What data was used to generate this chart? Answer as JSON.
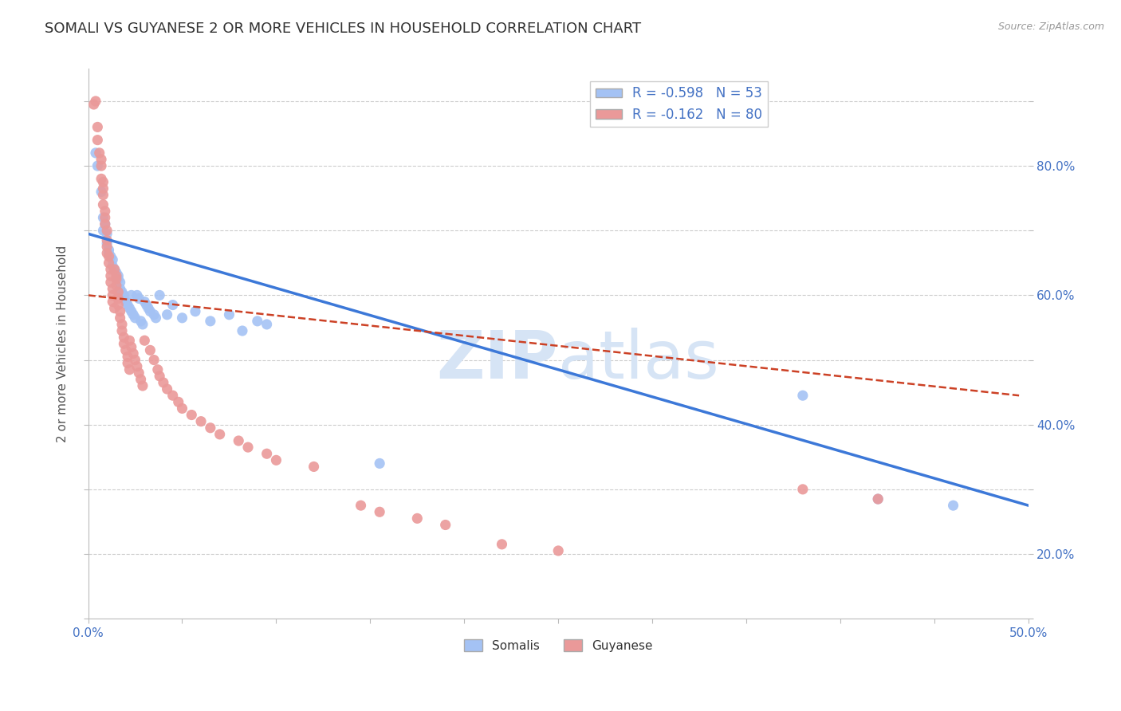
{
  "title": "SOMALI VS GUYANESE 2 OR MORE VEHICLES IN HOUSEHOLD CORRELATION CHART",
  "source": "Source: ZipAtlas.com",
  "ylabel": "2 or more Vehicles in Household",
  "xlim": [
    0.0,
    0.5
  ],
  "ylim": [
    0.0,
    0.85
  ],
  "somali_R": "-0.598",
  "somali_N": "53",
  "guyanese_R": "-0.162",
  "guyanese_N": "80",
  "somali_color": "#a4c2f4",
  "guyanese_color": "#ea9999",
  "somali_line_color": "#3c78d8",
  "guyanese_line_color": "#cc4125",
  "background_color": "#ffffff",
  "grid_color": "#cccccc",
  "watermark_color": "#d6e4f5",
  "somali_scatter": [
    [
      0.004,
      0.72
    ],
    [
      0.005,
      0.7
    ],
    [
      0.007,
      0.66
    ],
    [
      0.008,
      0.62
    ],
    [
      0.008,
      0.6
    ],
    [
      0.009,
      0.61
    ],
    [
      0.01,
      0.595
    ],
    [
      0.01,
      0.58
    ],
    [
      0.011,
      0.57
    ],
    [
      0.011,
      0.565
    ],
    [
      0.012,
      0.56
    ],
    [
      0.013,
      0.555
    ],
    [
      0.013,
      0.545
    ],
    [
      0.014,
      0.54
    ],
    [
      0.015,
      0.535
    ],
    [
      0.016,
      0.53
    ],
    [
      0.016,
      0.525
    ],
    [
      0.017,
      0.52
    ],
    [
      0.017,
      0.51
    ],
    [
      0.018,
      0.505
    ],
    [
      0.019,
      0.5
    ],
    [
      0.019,
      0.495
    ],
    [
      0.02,
      0.49
    ],
    [
      0.021,
      0.485
    ],
    [
      0.022,
      0.48
    ],
    [
      0.023,
      0.475
    ],
    [
      0.023,
      0.5
    ],
    [
      0.024,
      0.47
    ],
    [
      0.025,
      0.465
    ],
    [
      0.026,
      0.5
    ],
    [
      0.027,
      0.495
    ],
    [
      0.028,
      0.46
    ],
    [
      0.029,
      0.455
    ],
    [
      0.03,
      0.49
    ],
    [
      0.031,
      0.485
    ],
    [
      0.032,
      0.48
    ],
    [
      0.033,
      0.475
    ],
    [
      0.035,
      0.47
    ],
    [
      0.036,
      0.465
    ],
    [
      0.038,
      0.5
    ],
    [
      0.042,
      0.47
    ],
    [
      0.045,
      0.485
    ],
    [
      0.05,
      0.465
    ],
    [
      0.057,
      0.475
    ],
    [
      0.065,
      0.46
    ],
    [
      0.075,
      0.47
    ],
    [
      0.082,
      0.445
    ],
    [
      0.09,
      0.46
    ],
    [
      0.095,
      0.455
    ],
    [
      0.155,
      0.24
    ],
    [
      0.38,
      0.345
    ],
    [
      0.42,
      0.185
    ],
    [
      0.46,
      0.175
    ]
  ],
  "guyanese_scatter": [
    [
      0.003,
      0.795
    ],
    [
      0.004,
      0.8
    ],
    [
      0.005,
      0.76
    ],
    [
      0.005,
      0.74
    ],
    [
      0.006,
      0.72
    ],
    [
      0.007,
      0.71
    ],
    [
      0.007,
      0.7
    ],
    [
      0.007,
      0.68
    ],
    [
      0.008,
      0.675
    ],
    [
      0.008,
      0.665
    ],
    [
      0.008,
      0.655
    ],
    [
      0.008,
      0.64
    ],
    [
      0.009,
      0.63
    ],
    [
      0.009,
      0.62
    ],
    [
      0.009,
      0.61
    ],
    [
      0.01,
      0.6
    ],
    [
      0.01,
      0.585
    ],
    [
      0.01,
      0.575
    ],
    [
      0.01,
      0.565
    ],
    [
      0.011,
      0.56
    ],
    [
      0.011,
      0.55
    ],
    [
      0.012,
      0.54
    ],
    [
      0.012,
      0.53
    ],
    [
      0.012,
      0.52
    ],
    [
      0.013,
      0.51
    ],
    [
      0.013,
      0.5
    ],
    [
      0.013,
      0.49
    ],
    [
      0.014,
      0.48
    ],
    [
      0.014,
      0.54
    ],
    [
      0.015,
      0.53
    ],
    [
      0.015,
      0.525
    ],
    [
      0.015,
      0.515
    ],
    [
      0.016,
      0.505
    ],
    [
      0.016,
      0.495
    ],
    [
      0.016,
      0.485
    ],
    [
      0.017,
      0.475
    ],
    [
      0.017,
      0.465
    ],
    [
      0.018,
      0.455
    ],
    [
      0.018,
      0.445
    ],
    [
      0.019,
      0.435
    ],
    [
      0.019,
      0.425
    ],
    [
      0.02,
      0.415
    ],
    [
      0.021,
      0.405
    ],
    [
      0.021,
      0.395
    ],
    [
      0.022,
      0.385
    ],
    [
      0.022,
      0.43
    ],
    [
      0.023,
      0.42
    ],
    [
      0.024,
      0.41
    ],
    [
      0.025,
      0.4
    ],
    [
      0.026,
      0.39
    ],
    [
      0.027,
      0.38
    ],
    [
      0.028,
      0.37
    ],
    [
      0.029,
      0.36
    ],
    [
      0.03,
      0.43
    ],
    [
      0.033,
      0.415
    ],
    [
      0.035,
      0.4
    ],
    [
      0.037,
      0.385
    ],
    [
      0.038,
      0.375
    ],
    [
      0.04,
      0.365
    ],
    [
      0.042,
      0.355
    ],
    [
      0.045,
      0.345
    ],
    [
      0.048,
      0.335
    ],
    [
      0.05,
      0.325
    ],
    [
      0.055,
      0.315
    ],
    [
      0.06,
      0.305
    ],
    [
      0.065,
      0.295
    ],
    [
      0.07,
      0.285
    ],
    [
      0.08,
      0.275
    ],
    [
      0.085,
      0.265
    ],
    [
      0.095,
      0.255
    ],
    [
      0.1,
      0.245
    ],
    [
      0.12,
      0.235
    ],
    [
      0.145,
      0.175
    ],
    [
      0.155,
      0.165
    ],
    [
      0.175,
      0.155
    ],
    [
      0.19,
      0.145
    ],
    [
      0.22,
      0.115
    ],
    [
      0.25,
      0.105
    ],
    [
      0.38,
      0.2
    ],
    [
      0.42,
      0.185
    ]
  ],
  "somali_line": [
    [
      0.0,
      0.595
    ],
    [
      0.5,
      0.175
    ]
  ],
  "guyanese_line": [
    [
      0.0,
      0.5
    ],
    [
      0.495,
      0.345
    ]
  ]
}
